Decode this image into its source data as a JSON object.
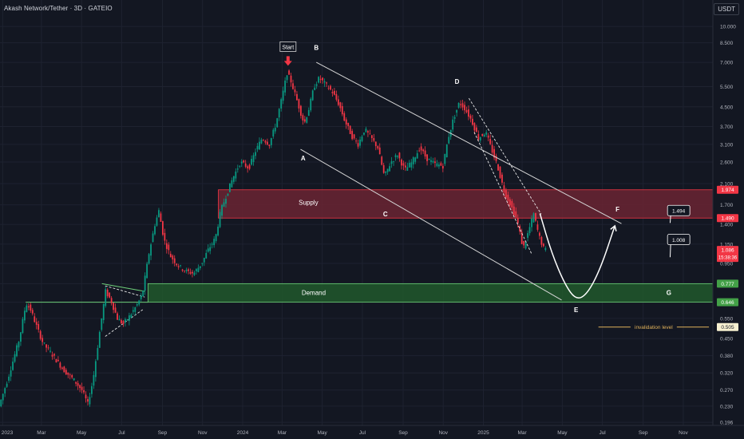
{
  "header": {
    "title": "Akash Network/Tether · 3D · GATEIO",
    "currency": "USDT"
  },
  "colors": {
    "background": "#131722",
    "grid": "#1e2230",
    "up": "#089981",
    "down": "#f23645",
    "supply_fill": "#6e2433",
    "supply_edge": "#f23645",
    "demand_fill": "#215a2c",
    "demand_edge": "#6fd07a",
    "line": "#d6d6d6",
    "text": "#d1d4dc",
    "axis_text": "#b2b5be",
    "invalidation": "#e0b15a"
  },
  "chart_data": {
    "type": "candlestick",
    "log_scale": true,
    "grid": true,
    "ylim": [
      0.19,
      13.0
    ],
    "xlim": [
      "2022-12-28",
      "2025-12-16"
    ],
    "y_ticks": [
      "10.000",
      "8.500",
      "7.000",
      "5.500",
      "4.500",
      "3.700",
      "3.100",
      "2.600",
      "2.100",
      "1.700",
      "1.400",
      "1.150",
      "0.950",
      "0.777",
      "0.646",
      "0.550",
      "0.450",
      "0.380",
      "0.320",
      "0.270",
      "0.230",
      "0.196"
    ],
    "x_ticks": [
      {
        "date": "2023-01-01",
        "label": "2023"
      },
      {
        "date": "2023-03-01",
        "label": "Mar"
      },
      {
        "date": "2023-05-01",
        "label": "May"
      },
      {
        "date": "2023-07-01",
        "label": "Jul"
      },
      {
        "date": "2023-09-01",
        "label": "Sep"
      },
      {
        "date": "2023-11-01",
        "label": "Nov"
      },
      {
        "date": "2024-01-01",
        "label": "2024"
      },
      {
        "date": "2024-03-01",
        "label": "Mar"
      },
      {
        "date": "2024-05-01",
        "label": "May"
      },
      {
        "date": "2024-07-01",
        "label": "Jul"
      },
      {
        "date": "2024-09-01",
        "label": "Sep"
      },
      {
        "date": "2024-11-01",
        "label": "Nov"
      },
      {
        "date": "2025-01-01",
        "label": "2025"
      },
      {
        "date": "2025-03-01",
        "label": "Mar"
      },
      {
        "date": "2025-05-01",
        "label": "May"
      },
      {
        "date": "2025-07-01",
        "label": "Jul"
      },
      {
        "date": "2025-09-01",
        "label": "Sep"
      },
      {
        "date": "2025-11-01",
        "label": "Nov"
      }
    ],
    "price_path": [
      [
        "2022-12-28",
        0.23
      ],
      [
        "2023-01-10",
        0.3
      ],
      [
        "2023-01-28",
        0.45
      ],
      [
        "2023-02-07",
        0.64
      ],
      [
        "2023-02-14",
        0.6
      ],
      [
        "2023-02-24",
        0.5
      ],
      [
        "2023-03-05",
        0.43
      ],
      [
        "2023-03-20",
        0.38
      ],
      [
        "2023-04-05",
        0.33
      ],
      [
        "2023-04-20",
        0.3
      ],
      [
        "2023-05-03",
        0.27
      ],
      [
        "2023-05-12",
        0.235
      ],
      [
        "2023-05-20",
        0.3
      ],
      [
        "2023-05-30",
        0.48
      ],
      [
        "2023-06-08",
        0.72
      ],
      [
        "2023-06-16",
        0.66
      ],
      [
        "2023-06-26",
        0.55
      ],
      [
        "2023-07-05",
        0.52
      ],
      [
        "2023-07-16",
        0.57
      ],
      [
        "2023-07-26",
        0.63
      ],
      [
        "2023-08-03",
        0.7
      ],
      [
        "2023-08-13",
        1.05
      ],
      [
        "2023-08-22",
        1.4
      ],
      [
        "2023-08-28",
        1.6
      ],
      [
        "2023-09-05",
        1.2
      ],
      [
        "2023-09-15",
        1.02
      ],
      [
        "2023-09-26",
        0.93
      ],
      [
        "2023-10-08",
        0.88
      ],
      [
        "2023-10-20",
        0.86
      ],
      [
        "2023-11-01",
        0.95
      ],
      [
        "2023-11-12",
        1.1
      ],
      [
        "2023-11-22",
        1.22
      ],
      [
        "2023-11-30",
        1.6
      ],
      [
        "2023-12-08",
        1.85
      ],
      [
        "2023-12-18",
        2.2
      ],
      [
        "2023-12-30",
        2.6
      ],
      [
        "2024-01-12",
        2.45
      ],
      [
        "2024-01-22",
        2.9
      ],
      [
        "2024-02-01",
        3.3
      ],
      [
        "2024-02-12",
        3.1
      ],
      [
        "2024-02-22",
        3.8
      ],
      [
        "2024-03-02",
        4.9
      ],
      [
        "2024-03-10",
        6.3
      ],
      [
        "2024-03-16",
        5.8
      ],
      [
        "2024-03-25",
        4.8
      ],
      [
        "2024-04-05",
        3.8
      ],
      [
        "2024-04-13",
        4.5
      ],
      [
        "2024-04-20",
        5.5
      ],
      [
        "2024-04-28",
        6.0
      ],
      [
        "2024-05-08",
        5.6
      ],
      [
        "2024-05-18",
        5.2
      ],
      [
        "2024-05-28",
        4.6
      ],
      [
        "2024-06-06",
        3.9
      ],
      [
        "2024-06-18",
        3.3
      ],
      [
        "2024-06-26",
        3.1
      ],
      [
        "2024-07-06",
        3.6
      ],
      [
        "2024-07-16",
        3.3
      ],
      [
        "2024-07-26",
        3.0
      ],
      [
        "2024-08-05",
        2.25
      ],
      [
        "2024-08-15",
        2.6
      ],
      [
        "2024-08-25",
        2.8
      ],
      [
        "2024-09-05",
        2.4
      ],
      [
        "2024-09-16",
        2.6
      ],
      [
        "2024-09-28",
        3.0
      ],
      [
        "2024-10-08",
        2.7
      ],
      [
        "2024-10-20",
        2.55
      ],
      [
        "2024-11-02",
        2.5
      ],
      [
        "2024-11-10",
        3.3
      ],
      [
        "2024-11-18",
        4.0
      ],
      [
        "2024-11-27",
        4.7
      ],
      [
        "2024-12-06",
        4.4
      ],
      [
        "2024-12-16",
        3.9
      ],
      [
        "2024-12-26",
        3.3
      ],
      [
        "2025-01-06",
        3.5
      ],
      [
        "2025-01-14",
        3.0
      ],
      [
        "2025-01-24",
        2.5
      ],
      [
        "2025-02-03",
        1.95
      ],
      [
        "2025-02-13",
        1.7
      ],
      [
        "2025-02-23",
        1.45
      ],
      [
        "2025-03-04",
        1.1
      ],
      [
        "2025-03-12",
        1.3
      ],
      [
        "2025-03-20",
        1.55
      ],
      [
        "2025-03-28",
        1.25
      ],
      [
        "2025-04-05",
        1.086
      ]
    ],
    "zones": [
      {
        "name": "Supply",
        "from_date": "2023-11-25",
        "to_date": "2025-12-16",
        "low": 1.49,
        "high": 1.974
      },
      {
        "name": "Demand",
        "from_date": "2023-08-10",
        "to_date": "2025-12-16",
        "low": 0.646,
        "high": 0.777
      }
    ],
    "channel_upper": [
      [
        "2024-04-22",
        7.0
      ],
      [
        "2025-07-30",
        1.41
      ]
    ],
    "channel_lower": [
      [
        "2024-03-29",
        2.95
      ],
      [
        "2025-04-30",
        0.66
      ]
    ],
    "left_base_line": {
      "from": [
        "2023-02-05",
        0.646
      ],
      "to": [
        "2023-08-10",
        0.646
      ]
    },
    "early_pattern": {
      "top_line": [
        [
          "2023-06-01",
          0.777
        ],
        [
          "2023-08-05",
          0.72
        ]
      ],
      "dash_top": [
        [
          "2023-06-06",
          0.76
        ],
        [
          "2023-08-05",
          0.68
        ]
      ],
      "dash_bottom": [
        [
          "2023-06-06",
          0.46
        ],
        [
          "2023-08-02",
          0.6
        ]
      ]
    },
    "wedge": [
      [
        "2024-12-10",
        4.9
      ],
      [
        "2025-03-30",
        1.55
      ],
      [
        "2025-03-15",
        1.05
      ],
      [
        "2024-12-18",
        3.5
      ]
    ],
    "projection": [
      [
        "2025-03-28",
        1.56
      ],
      [
        "2025-04-15",
        1.05
      ],
      [
        "2025-05-05",
        0.77
      ],
      [
        "2025-05-22",
        0.66
      ],
      [
        "2025-06-08",
        0.7
      ],
      [
        "2025-06-28",
        0.9
      ],
      [
        "2025-07-20",
        1.38
      ]
    ],
    "points": [
      {
        "label": "B",
        "date": "2024-04-22",
        "price": 8.1,
        "pos": "above"
      },
      {
        "label": "A",
        "date": "2024-04-02",
        "price": 2.7,
        "pos": "below"
      },
      {
        "label": "C",
        "date": "2024-08-05",
        "price": 1.55,
        "pos": "below"
      },
      {
        "label": "D",
        "date": "2024-11-22",
        "price": 5.8,
        "pos": "above"
      },
      {
        "label": "E",
        "date": "2025-05-22",
        "price": 0.6,
        "pos": "below"
      },
      {
        "label": "F",
        "date": "2025-07-24",
        "price": 1.63,
        "pos": "above"
      },
      {
        "label": "G",
        "date": "2025-10-10",
        "price": 0.71,
        "pos": "center"
      }
    ],
    "start_marker": {
      "label": "Start",
      "date": "2024-03-10",
      "price": 6.5
    },
    "zone_labels": [
      {
        "text": "Supply",
        "date": "2024-04-10",
        "price": 1.74
      },
      {
        "text": "Demand",
        "date": "2024-04-18",
        "price": 0.711
      }
    ],
    "invalidation": {
      "label": "invalidation level",
      "price": 0.505,
      "from_date": "2025-06-25",
      "to_date": "2025-12-10"
    },
    "callouts": [
      {
        "text": "1.494",
        "date": "2025-10-25",
        "price": 1.6,
        "anchor_date": "2025-10-12",
        "anchor_price": 1.42
      },
      {
        "text": "1.008",
        "date": "2025-10-25",
        "price": 1.2,
        "anchor_date": "2025-10-12",
        "anchor_price": 1.01
      }
    ],
    "price_labels": [
      {
        "text": "1.974",
        "price": 1.974,
        "color": "#f23645"
      },
      {
        "text": "1.490",
        "price": 1.49,
        "color": "#f23645"
      },
      {
        "text": "1.086",
        "sub": "15:38:36",
        "price": 1.086,
        "color": "#f23645"
      },
      {
        "text": "0.777",
        "price": 0.777,
        "color": "#43a047"
      },
      {
        "text": "0.646",
        "price": 0.646,
        "color": "#43a047"
      },
      {
        "text": "0.505",
        "price": 0.505,
        "color": "#f7f0d0",
        "text_color": "#131722"
      }
    ]
  }
}
